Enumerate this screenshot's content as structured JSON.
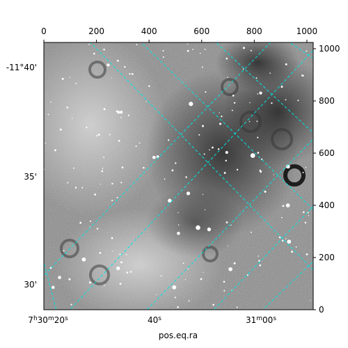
{
  "chart_data": {
    "type": "image",
    "title": "",
    "xlabel": "pos.eq.ra",
    "ylabel": "",
    "pixel_axes": {
      "top": {
        "range": [
          0,
          1024
        ],
        "ticks": [
          0,
          200,
          400,
          600,
          800,
          1000
        ],
        "tick_labels": [
          "0",
          "200",
          "400",
          "600",
          "800",
          "1000"
        ]
      },
      "right": {
        "range": [
          0,
          1024
        ],
        "ticks": [
          0,
          200,
          400,
          600,
          800,
          1000
        ],
        "tick_labels": [
          "0",
          "200",
          "400",
          "600",
          "800",
          "1000"
        ]
      }
    },
    "world_axes": {
      "ra_tick_labels": [
        "7h30m20s",
        "40s",
        "31m00s"
      ],
      "dec_tick_labels": [
        "-11°40'",
        "35'",
        "30'"
      ]
    },
    "grid": true,
    "grid_color": "#00e5e5",
    "image_colormap": "gray",
    "image_description": "grayscale astronomical image with many bright point sources"
  }
}
